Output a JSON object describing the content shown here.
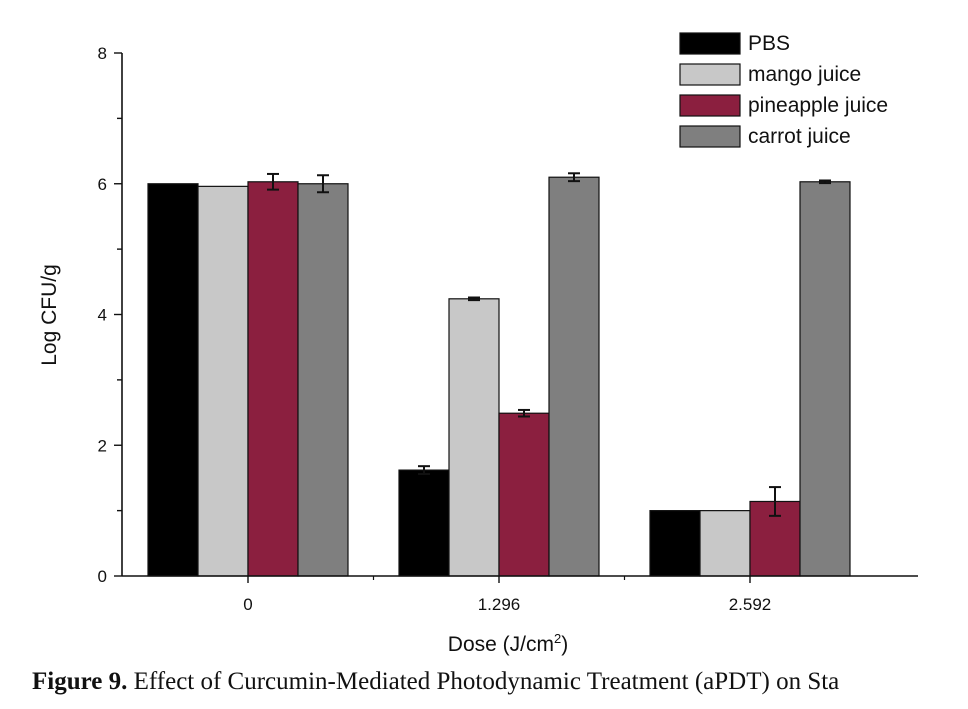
{
  "chart_data": {
    "type": "bar",
    "title": "",
    "xlabel_main": "Dose (J/cm",
    "xlabel_sup": "2",
    "xlabel_tail": ")",
    "ylabel": "Log CFU/g",
    "ylim": [
      0,
      8
    ],
    "yticks": [
      "0",
      "2",
      "4",
      "6",
      "8"
    ],
    "categories": [
      "0",
      "1.296",
      "2.592"
    ],
    "legend_position": "top-right",
    "grid": false,
    "series": [
      {
        "name": "PBS",
        "color": "#000000",
        "values": [
          6.0,
          1.62,
          1.0
        ],
        "errors": [
          0.0,
          0.06,
          0.0
        ]
      },
      {
        "name": "mango juice",
        "color": "#c8c8c8",
        "values": [
          5.96,
          4.24,
          1.0
        ],
        "errors": [
          0.0,
          0.02,
          0.0
        ]
      },
      {
        "name": "pineapple juice",
        "color": "#8b1f3f",
        "values": [
          6.03,
          2.49,
          1.14
        ],
        "errors": [
          0.12,
          0.05,
          0.22
        ]
      },
      {
        "name": "carrot juice",
        "color": "#7f7f7f",
        "values": [
          6.0,
          6.1,
          6.03
        ],
        "errors": [
          0.13,
          0.06,
          0.02
        ]
      }
    ]
  },
  "caption": {
    "label": "Figure 9.",
    "text": "Effect of Curcumin-Mediated Photodynamic Treatment (aPDT) on Sta"
  }
}
